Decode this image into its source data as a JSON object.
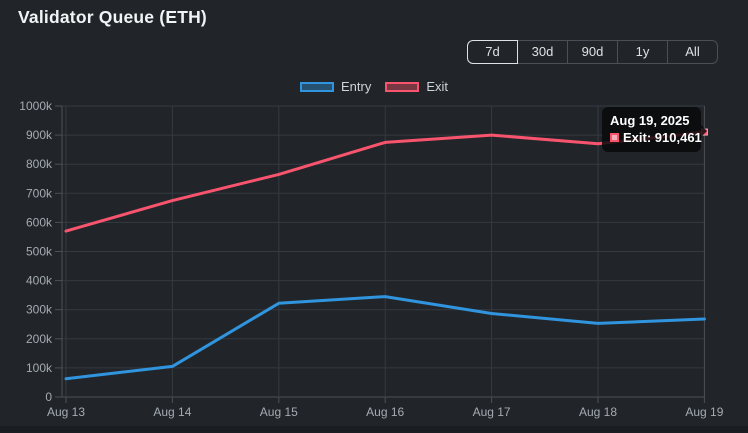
{
  "header": {
    "title": "Validator Queue (ETH)"
  },
  "range_buttons": [
    {
      "label": "7d",
      "selected": true
    },
    {
      "label": "30d",
      "selected": false
    },
    {
      "label": "90d",
      "selected": false
    },
    {
      "label": "1y",
      "selected": false
    },
    {
      "label": "All",
      "selected": false
    }
  ],
  "chart_data": {
    "type": "line",
    "x_labels": [
      "Aug 13",
      "Aug 14",
      "Aug 15",
      "Aug 16",
      "Aug 17",
      "Aug 18",
      "Aug 19"
    ],
    "y_tick_labels": [
      "0",
      "100k",
      "200k",
      "300k",
      "400k",
      "500k",
      "600k",
      "700k",
      "800k",
      "900k",
      "1000k"
    ],
    "ylim": [
      0,
      1000000
    ],
    "grid": true,
    "legend_position": "top",
    "series": [
      {
        "name": "Entry",
        "color": "#3094de",
        "values": [
          63000,
          105000,
          322000,
          345000,
          287000,
          253000,
          268000
        ]
      },
      {
        "name": "Exit",
        "color": "#f9546e",
        "values": [
          570000,
          675000,
          765000,
          875000,
          900000,
          870000,
          910461
        ]
      }
    ],
    "hover_point": {
      "series": "Exit",
      "x_label": "Aug 19",
      "value": 910461
    }
  },
  "tooltip": {
    "date": "Aug 19, 2025",
    "text": "Exit: 910,461"
  },
  "colors": {
    "background": "#212529",
    "entry": "#3094de",
    "exit": "#f9546e",
    "grid": "#343a41",
    "axis": "#4b5158",
    "tick_label": "#a4abb3",
    "tooltip_background": "#0a0a0c"
  }
}
